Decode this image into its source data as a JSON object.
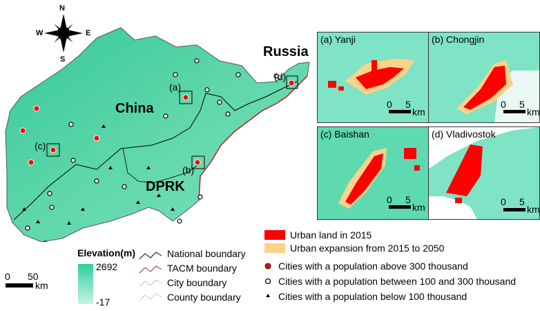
{
  "compass": {
    "n": "N",
    "s": "S",
    "e": "E",
    "w": "W"
  },
  "map_labels": {
    "china": "China",
    "dprk": "DPRK",
    "russia": "Russia",
    "a": "(a)",
    "b": "(b)",
    "c": "(c)",
    "d": "(d)"
  },
  "scalebar": {
    "zero": "0",
    "fifty": "50",
    "unit": "km"
  },
  "elevation": {
    "title": "Elevation(m)",
    "max": "2692",
    "min": "-17",
    "colors": [
      "#2ecf9a",
      "#c9f3e6"
    ]
  },
  "boundaries": [
    {
      "label": "National boundary",
      "color": "#000000"
    },
    {
      "label": "TACM boundary",
      "color": "#b22222"
    },
    {
      "label": "City boundary",
      "color": "#c8b8e8"
    },
    {
      "label": "County boundary",
      "color": "#c8c8d8"
    }
  ],
  "panels": [
    {
      "label": "(a) Yanji",
      "scale_zero": "0",
      "scale_five": "5",
      "scale_unit": "km"
    },
    {
      "label": "(b) Chongjin",
      "scale_zero": "0",
      "scale_five": "5",
      "scale_unit": "km"
    },
    {
      "label": "(c) Baishan",
      "scale_zero": "0",
      "scale_five": "5",
      "scale_unit": "km"
    },
    {
      "label": "(d) Vladivostok",
      "scale_zero": "0",
      "scale_five": "5",
      "scale_unit": "km"
    }
  ],
  "urban_legend": {
    "urban_2015": "Urban land in 2015",
    "expansion": "Urban expansion from 2015 to 2050",
    "urban_color": "#ff0000",
    "expansion_color": "#f9d38a"
  },
  "city_legend": {
    "large": "Cities with a population above 300 thousand",
    "medium": "Cities with a population  between 100 and 300 thousand",
    "small": "Cities with a population below 100 thousand"
  }
}
